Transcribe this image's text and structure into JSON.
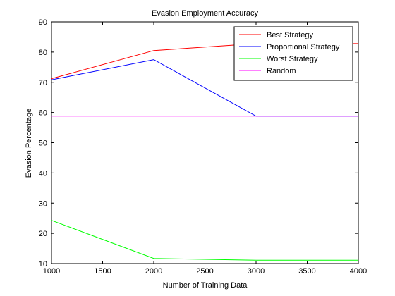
{
  "chart_data": {
    "type": "line",
    "title": "Evasion Employment Accuracy",
    "xlabel": "Number of Training Data",
    "ylabel": "Evasion Percentage",
    "xlim": [
      1000,
      4000
    ],
    "ylim": [
      10,
      90
    ],
    "xticks": [
      1000,
      1500,
      2000,
      2500,
      3000,
      3500,
      4000
    ],
    "yticks": [
      10,
      20,
      30,
      40,
      50,
      60,
      70,
      80,
      90
    ],
    "grid": false,
    "legend_position": "top-right",
    "series": [
      {
        "name": "Best Strategy",
        "color": "#ff0000",
        "x": [
          1000,
          2000,
          3000,
          4000
        ],
        "y": [
          71.2,
          80.5,
          82.8,
          82.8
        ]
      },
      {
        "name": "Proportional Strategy",
        "color": "#0000ff",
        "x": [
          1000,
          2000,
          3000,
          4000
        ],
        "y": [
          70.8,
          77.5,
          58.8,
          58.8
        ]
      },
      {
        "name": "Worst Strategy",
        "color": "#00ff00",
        "x": [
          1000,
          2000,
          3000,
          4000
        ],
        "y": [
          24.3,
          11.7,
          11.1,
          11.1
        ]
      },
      {
        "name": "Random",
        "color": "#ff00ff",
        "x": [
          1000,
          2000,
          3000,
          4000
        ],
        "y": [
          58.8,
          58.8,
          58.8,
          58.8
        ]
      }
    ]
  }
}
